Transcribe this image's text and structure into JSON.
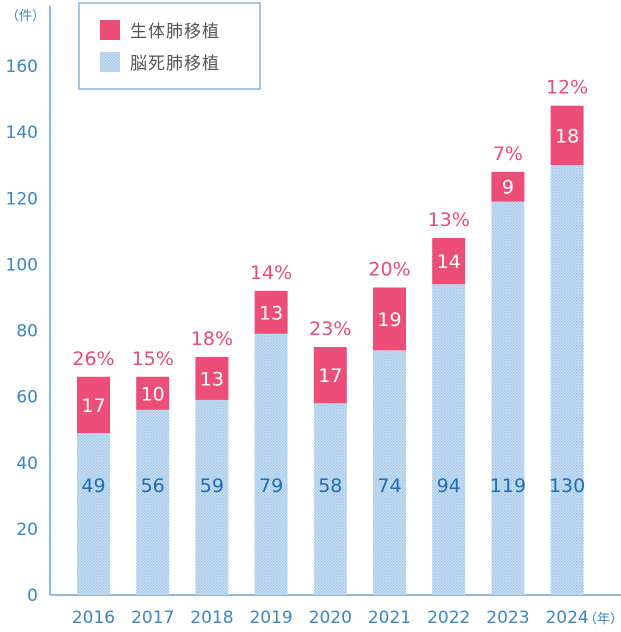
{
  "chart_data": {
    "type": "bar",
    "stacked": true,
    "title": "",
    "xlabel": "",
    "ylabel": "",
    "y_unit_label": "（件）",
    "x_unit_label": "（年）",
    "ylim": [
      0,
      160
    ],
    "yticks": [
      0,
      20,
      40,
      60,
      80,
      100,
      120,
      140,
      160
    ],
    "grid": false,
    "legend_position": "top-left",
    "categories": [
      "2016",
      "2017",
      "2018",
      "2019",
      "2020",
      "2021",
      "2022",
      "2023",
      "2024"
    ],
    "series": [
      {
        "name": "脳死肺移植",
        "color": "#b9d6ef",
        "pattern": "dotted",
        "values": [
          49,
          56,
          59,
          79,
          58,
          74,
          94,
          119,
          130
        ]
      },
      {
        "name": "生体肺移植",
        "color": "#ec4e77",
        "pattern": "solid",
        "values": [
          17,
          10,
          13,
          13,
          17,
          19,
          14,
          9,
          18
        ]
      }
    ],
    "annotations": {
      "live_share_percent": [
        "26%",
        "15%",
        "18%",
        "14%",
        "23%",
        "20%",
        "13%",
        "7%",
        "12%"
      ]
    },
    "legend": [
      "生体肺移植",
      "脳死肺移植"
    ]
  },
  "colors": {
    "axis": "#6aa3d3",
    "tick_text": "#3d86c0",
    "live": "#ec4e77",
    "brain": "#b9d6ef",
    "brain_dot": "#8fbbe3",
    "brain_value_text": "#1f6db3",
    "pct_text": "#e84d78"
  }
}
